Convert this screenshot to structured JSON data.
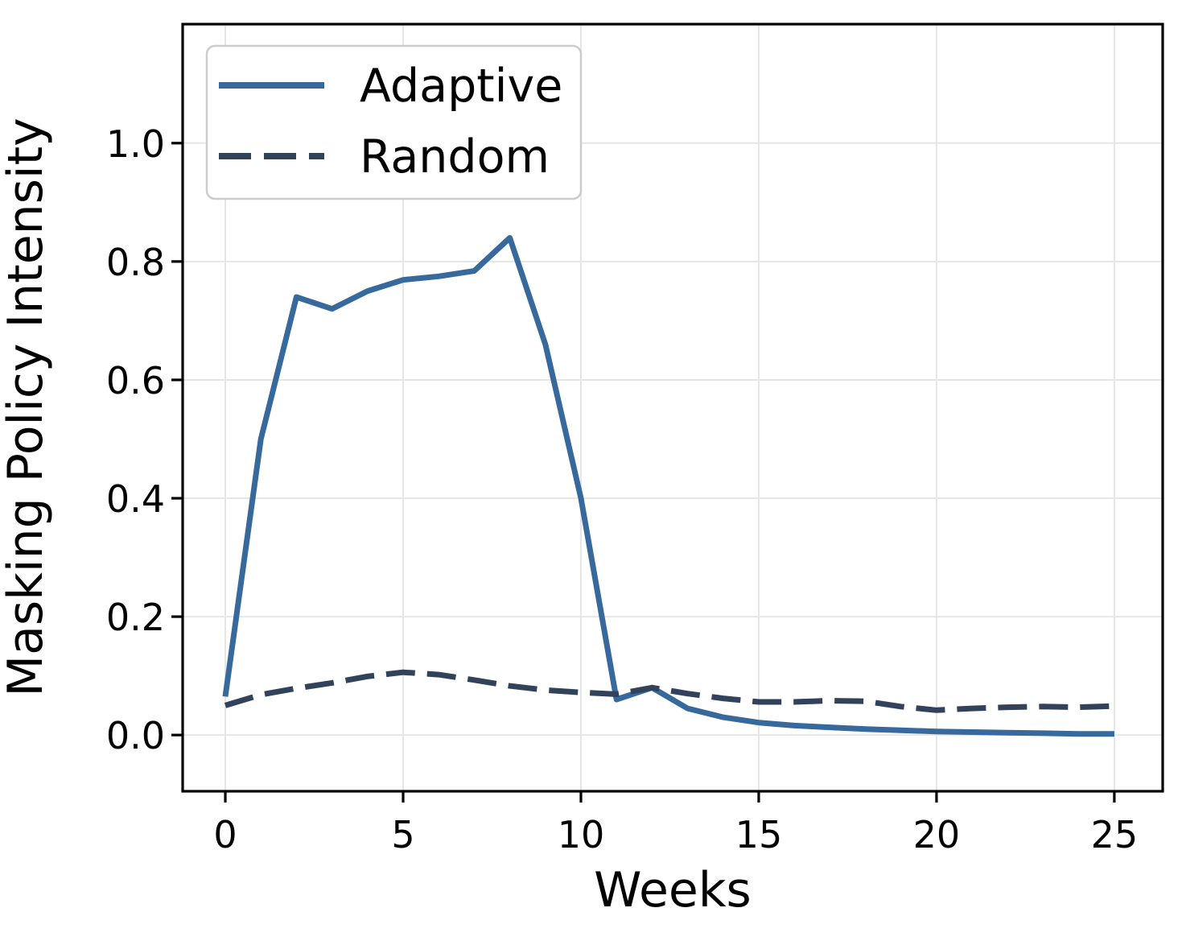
{
  "chart_data": {
    "type": "line",
    "title": "",
    "xlabel": "Weeks",
    "ylabel": "Masking Policy Intensity",
    "x": [
      0,
      1,
      2,
      3,
      4,
      5,
      6,
      7,
      8,
      9,
      10,
      11,
      12,
      13,
      14,
      15,
      16,
      17,
      18,
      19,
      20,
      21,
      22,
      23,
      24,
      25
    ],
    "series": [
      {
        "name": "Adaptive",
        "style": "solid",
        "color": "#37699d",
        "values": [
          0.065,
          0.5,
          0.74,
          0.72,
          0.75,
          0.769,
          0.775,
          0.784,
          0.84,
          0.66,
          0.4,
          0.06,
          0.08,
          0.045,
          0.03,
          0.021,
          0.016,
          0.013,
          0.01,
          0.008,
          0.006,
          0.005,
          0.004,
          0.003,
          0.002,
          0.002
        ]
      },
      {
        "name": "Random",
        "style": "dashed",
        "color": "#33425b",
        "values": [
          0.05,
          0.068,
          0.079,
          0.088,
          0.099,
          0.106,
          0.102,
          0.093,
          0.083,
          0.076,
          0.072,
          0.069,
          0.08,
          0.07,
          0.062,
          0.056,
          0.056,
          0.058,
          0.057,
          0.048,
          0.042,
          0.045,
          0.047,
          0.048,
          0.047,
          0.049
        ]
      }
    ],
    "xticks": [
      0,
      5,
      10,
      15,
      20,
      25
    ],
    "yticks": [
      0.0,
      0.2,
      0.4,
      0.6,
      0.8,
      1.0
    ],
    "xlim": [
      -1.2,
      26.36
    ],
    "ylim": [
      -0.095,
      1.201
    ],
    "grid": true,
    "grid_color": "#e6e6e6",
    "spine_color": "#000000",
    "background": "#ffffff",
    "legend_position": "upper left"
  }
}
